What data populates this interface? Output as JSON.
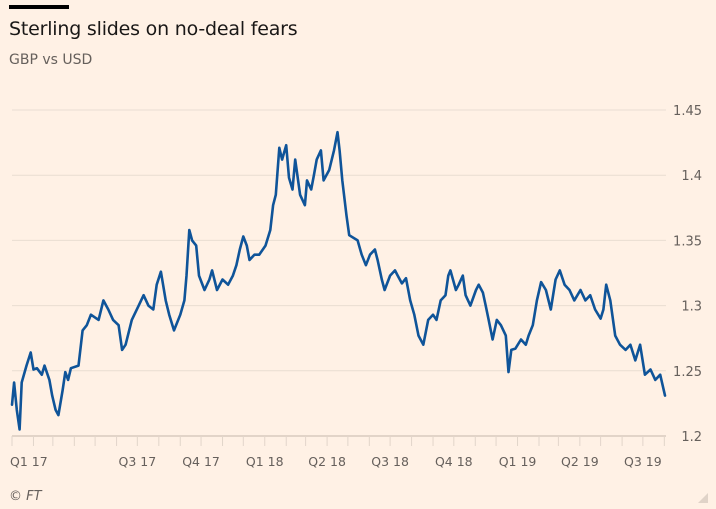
{
  "header": {
    "title": "Sterling slides on no-deal fears",
    "subtitle": "GBP vs USD"
  },
  "footer": {
    "source": "© FT"
  },
  "colors": {
    "background": "#fff1e5",
    "line": "#0f5499",
    "gridline": "#e9ddd2",
    "text": "#66605c"
  },
  "chart_data": {
    "type": "line",
    "title": "Sterling slides on no-deal fears",
    "subtitle": "GBP vs USD",
    "xlabel": "",
    "ylabel": "",
    "ylim": [
      1.2,
      1.45
    ],
    "yticks": [
      "1.2",
      "1.25",
      "1.3",
      "1.35",
      "1.4",
      "1.45"
    ],
    "xlim": [
      "2017-01-01",
      "2019-08-02"
    ],
    "xticks": [
      {
        "label": "Q1 17",
        "date": "2017-01-01"
      },
      {
        "label": "Q3 17",
        "date": "2017-07-01"
      },
      {
        "label": "Q4 17",
        "date": "2017-10-01"
      },
      {
        "label": "Q1 18",
        "date": "2018-01-01"
      },
      {
        "label": "Q2 18",
        "date": "2018-04-01"
      },
      {
        "label": "Q3 18",
        "date": "2018-07-01"
      },
      {
        "label": "Q4 18",
        "date": "2018-10-01"
      },
      {
        "label": "Q1 19",
        "date": "2019-01-01"
      },
      {
        "label": "Q2 19",
        "date": "2019-04-01"
      },
      {
        "label": "Q3 19",
        "date": "2019-07-01"
      }
    ],
    "grid": true,
    "y_axis_side": "right",
    "series": [
      {
        "points": [
          [
            "2017-01-01",
            1.224
          ],
          [
            "2017-01-04",
            1.241
          ],
          [
            "2017-01-08",
            1.22
          ],
          [
            "2017-01-12",
            1.205
          ],
          [
            "2017-01-15",
            1.241
          ],
          [
            "2017-01-22",
            1.254
          ],
          [
            "2017-01-28",
            1.264
          ],
          [
            "2017-02-01",
            1.251
          ],
          [
            "2017-02-06",
            1.252
          ],
          [
            "2017-02-13",
            1.247
          ],
          [
            "2017-02-17",
            1.254
          ],
          [
            "2017-02-24",
            1.243
          ],
          [
            "2017-02-28",
            1.231
          ],
          [
            "2017-03-05",
            1.22
          ],
          [
            "2017-03-09",
            1.216
          ],
          [
            "2017-03-15",
            1.235
          ],
          [
            "2017-03-19",
            1.249
          ],
          [
            "2017-03-23",
            1.243
          ],
          [
            "2017-03-27",
            1.252
          ],
          [
            "2017-04-07",
            1.254
          ],
          [
            "2017-04-13",
            1.281
          ],
          [
            "2017-04-19",
            1.285
          ],
          [
            "2017-04-25",
            1.293
          ],
          [
            "2017-05-06",
            1.289
          ],
          [
            "2017-05-13",
            1.304
          ],
          [
            "2017-05-20",
            1.297
          ],
          [
            "2017-05-27",
            1.289
          ],
          [
            "2017-06-04",
            1.285
          ],
          [
            "2017-06-09",
            1.266
          ],
          [
            "2017-06-14",
            1.27
          ],
          [
            "2017-06-23",
            1.289
          ],
          [
            "2017-07-03",
            1.3
          ],
          [
            "2017-07-10",
            1.308
          ],
          [
            "2017-07-17",
            1.3
          ],
          [
            "2017-07-24",
            1.297
          ],
          [
            "2017-07-29",
            1.316
          ],
          [
            "2017-08-04",
            1.326
          ],
          [
            "2017-08-11",
            1.304
          ],
          [
            "2017-08-16",
            1.293
          ],
          [
            "2017-08-23",
            1.281
          ],
          [
            "2017-09-01",
            1.293
          ],
          [
            "2017-09-07",
            1.304
          ],
          [
            "2017-09-10",
            1.323
          ],
          [
            "2017-09-14",
            1.358
          ],
          [
            "2017-09-18",
            1.35
          ],
          [
            "2017-09-24",
            1.346
          ],
          [
            "2017-09-28",
            1.323
          ],
          [
            "2017-10-06",
            1.312
          ],
          [
            "2017-10-13",
            1.32
          ],
          [
            "2017-10-17",
            1.327
          ],
          [
            "2017-10-24",
            1.312
          ],
          [
            "2017-11-01",
            1.32
          ],
          [
            "2017-11-09",
            1.316
          ],
          [
            "2017-11-16",
            1.323
          ],
          [
            "2017-11-21",
            1.331
          ],
          [
            "2017-11-26",
            1.343
          ],
          [
            "2017-12-01",
            1.353
          ],
          [
            "2017-12-06",
            1.346
          ],
          [
            "2017-12-10",
            1.335
          ],
          [
            "2017-12-17",
            1.339
          ],
          [
            "2017-12-24",
            1.339
          ],
          [
            "2018-01-02",
            1.346
          ],
          [
            "2018-01-09",
            1.358
          ],
          [
            "2018-01-13",
            1.377
          ],
          [
            "2018-01-17",
            1.385
          ],
          [
            "2018-01-22",
            1.421
          ],
          [
            "2018-01-26",
            1.412
          ],
          [
            "2018-02-01",
            1.423
          ],
          [
            "2018-02-05",
            1.398
          ],
          [
            "2018-02-10",
            1.389
          ],
          [
            "2018-02-14",
            1.412
          ],
          [
            "2018-02-21",
            1.385
          ],
          [
            "2018-02-28",
            1.377
          ],
          [
            "2018-03-03",
            1.396
          ],
          [
            "2018-03-09",
            1.389
          ],
          [
            "2018-03-13",
            1.4
          ],
          [
            "2018-03-17",
            1.412
          ],
          [
            "2018-03-23",
            1.419
          ],
          [
            "2018-03-27",
            1.396
          ],
          [
            "2018-04-04",
            1.404
          ],
          [
            "2018-04-11",
            1.419
          ],
          [
            "2018-04-16",
            1.433
          ],
          [
            "2018-04-19",
            1.419
          ],
          [
            "2018-04-23",
            1.396
          ],
          [
            "2018-04-29",
            1.369
          ],
          [
            "2018-05-03",
            1.354
          ],
          [
            "2018-05-15",
            1.35
          ],
          [
            "2018-05-21",
            1.339
          ],
          [
            "2018-05-27",
            1.331
          ],
          [
            "2018-06-02",
            1.339
          ],
          [
            "2018-06-09",
            1.343
          ],
          [
            "2018-06-13",
            1.335
          ],
          [
            "2018-06-19",
            1.32
          ],
          [
            "2018-06-23",
            1.312
          ],
          [
            "2018-07-01",
            1.323
          ],
          [
            "2018-07-08",
            1.327
          ],
          [
            "2018-07-12",
            1.323
          ],
          [
            "2018-07-18",
            1.317
          ],
          [
            "2018-07-24",
            1.321
          ],
          [
            "2018-07-30",
            1.304
          ],
          [
            "2018-08-05",
            1.293
          ],
          [
            "2018-08-11",
            1.277
          ],
          [
            "2018-08-18",
            1.27
          ],
          [
            "2018-08-25",
            1.289
          ],
          [
            "2018-09-01",
            1.293
          ],
          [
            "2018-09-06",
            1.289
          ],
          [
            "2018-09-12",
            1.304
          ],
          [
            "2018-09-19",
            1.308
          ],
          [
            "2018-09-23",
            1.323
          ],
          [
            "2018-09-26",
            1.327
          ],
          [
            "2018-10-04",
            1.312
          ],
          [
            "2018-10-08",
            1.316
          ],
          [
            "2018-10-14",
            1.323
          ],
          [
            "2018-10-18",
            1.308
          ],
          [
            "2018-10-25",
            1.3
          ],
          [
            "2018-11-02",
            1.312
          ],
          [
            "2018-11-06",
            1.316
          ],
          [
            "2018-11-12",
            1.31
          ],
          [
            "2018-11-16",
            1.3
          ],
          [
            "2018-11-20",
            1.29
          ],
          [
            "2018-11-26",
            1.274
          ],
          [
            "2018-12-02",
            1.289
          ],
          [
            "2018-12-08",
            1.285
          ],
          [
            "2018-12-15",
            1.277
          ],
          [
            "2018-12-19",
            1.249
          ],
          [
            "2018-12-23",
            1.266
          ],
          [
            "2018-12-29",
            1.267
          ],
          [
            "2019-01-06",
            1.274
          ],
          [
            "2019-01-13",
            1.27
          ],
          [
            "2019-01-17",
            1.277
          ],
          [
            "2019-01-23",
            1.285
          ],
          [
            "2019-01-29",
            1.304
          ],
          [
            "2019-02-04",
            1.318
          ],
          [
            "2019-02-11",
            1.312
          ],
          [
            "2019-02-18",
            1.297
          ],
          [
            "2019-02-25",
            1.32
          ],
          [
            "2019-03-03",
            1.327
          ],
          [
            "2019-03-10",
            1.316
          ],
          [
            "2019-03-17",
            1.312
          ],
          [
            "2019-03-24",
            1.304
          ],
          [
            "2019-04-02",
            1.312
          ],
          [
            "2019-04-09",
            1.304
          ],
          [
            "2019-04-16",
            1.308
          ],
          [
            "2019-04-23",
            1.297
          ],
          [
            "2019-05-01",
            1.29
          ],
          [
            "2019-05-05",
            1.297
          ],
          [
            "2019-05-09",
            1.316
          ],
          [
            "2019-05-15",
            1.304
          ],
          [
            "2019-05-22",
            1.277
          ],
          [
            "2019-05-29",
            1.27
          ],
          [
            "2019-06-06",
            1.266
          ],
          [
            "2019-06-13",
            1.27
          ],
          [
            "2019-06-20",
            1.258
          ],
          [
            "2019-06-27",
            1.27
          ],
          [
            "2019-07-04",
            1.247
          ],
          [
            "2019-07-12",
            1.251
          ],
          [
            "2019-07-19",
            1.243
          ],
          [
            "2019-07-26",
            1.247
          ],
          [
            "2019-08-02",
            1.231
          ]
        ]
      }
    ]
  }
}
